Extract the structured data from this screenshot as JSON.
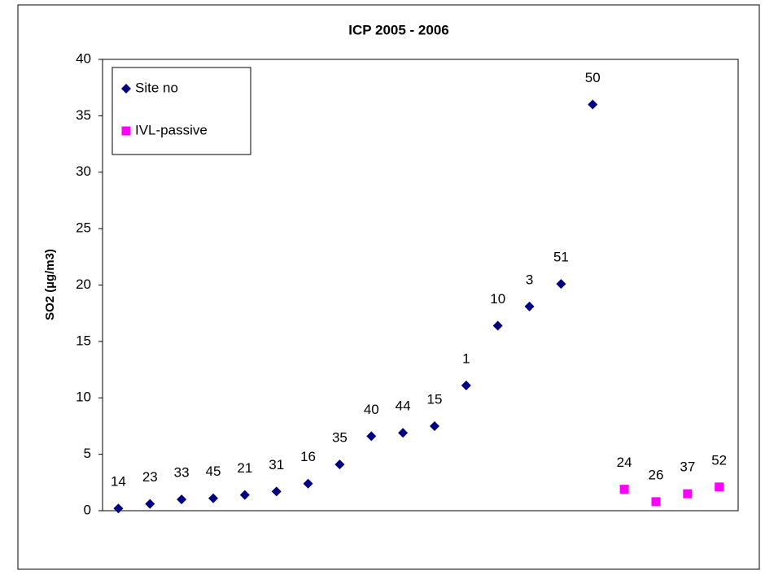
{
  "chart_data": {
    "type": "scatter",
    "title": "ICP 2005 - 2006",
    "y_label": "SO2 (µg/m3)",
    "xlim": [
      0.5,
      20.6
    ],
    "ylim": [
      0,
      40
    ],
    "yticks": [
      0,
      5,
      10,
      15,
      20,
      25,
      30,
      35,
      40
    ],
    "legend": "top-left",
    "series": [
      {
        "name": "Site no",
        "color": "#000080",
        "marker": "diamond",
        "x": [
          1,
          2,
          3,
          4,
          5,
          6,
          7,
          8,
          9,
          10,
          11,
          12,
          13,
          14,
          15,
          16
        ],
        "values": [
          0.2,
          0.6,
          1.0,
          1.1,
          1.4,
          1.7,
          2.4,
          4.1,
          6.6,
          6.9,
          7.5,
          11.1,
          16.4,
          18.1,
          20.1,
          36.0
        ],
        "point_labels": [
          "14",
          "23",
          "33",
          "45",
          "21",
          "31",
          "16",
          "35",
          "40",
          "44",
          "15",
          "1",
          "10",
          "3",
          "51",
          "50"
        ]
      },
      {
        "name": "IVL-passive",
        "color": "#ff00ff",
        "marker": "square",
        "x": [
          17,
          18,
          19,
          20
        ],
        "values": [
          1.9,
          0.8,
          1.5,
          2.1
        ],
        "point_labels": [
          "24",
          "26",
          "37",
          "52"
        ]
      }
    ]
  }
}
